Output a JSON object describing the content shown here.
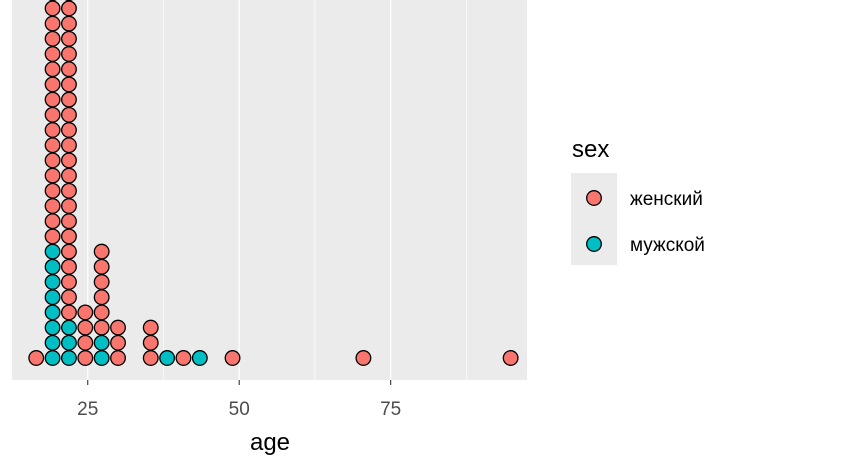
{
  "chart_data": {
    "type": "scatter",
    "subtype": "dotplot",
    "title": "",
    "xlabel": "age",
    "ylabel": "",
    "xlim": [
      12.5,
      97.5
    ],
    "x_ticks": [
      25,
      50,
      75
    ],
    "x_tick_labels": [
      "25",
      "50",
      "75"
    ],
    "grid": true,
    "legend_position": "right",
    "legend_title": "sex",
    "bin_width": 2.7,
    "series": [
      {
        "name": "женский",
        "color": "#F8766D"
      },
      {
        "name": "мужской",
        "color": "#00BFC4"
      }
    ],
    "stacks": [
      {
        "x": 16.5,
        "groups": [
          "женский"
        ]
      },
      {
        "x": 19.2,
        "groups": [
          "мужской",
          "мужской",
          "мужской",
          "мужской",
          "мужской",
          "мужской",
          "мужской",
          "мужской",
          "женский",
          "женский",
          "женский",
          "женский",
          "женский",
          "женский",
          "женский",
          "женский",
          "женский",
          "женский",
          "женский",
          "женский",
          "женский",
          "женский",
          "женский",
          "женский",
          "женский",
          "женский",
          "женский",
          "женский",
          "женский",
          "женский",
          "женский",
          "женский",
          "женский",
          "женский"
        ]
      },
      {
        "x": 21.9,
        "groups": [
          "мужской",
          "мужской",
          "мужской",
          "женский",
          "женский",
          "женский",
          "женский",
          "женский",
          "женский",
          "женский",
          "женский",
          "женский",
          "женский",
          "женский",
          "женский",
          "женский",
          "женский",
          "женский",
          "женский",
          "женский",
          "женский",
          "женский",
          "женский",
          "женский",
          "женский",
          "женский",
          "женский",
          "женский",
          "женский",
          "женский",
          "женский",
          "женский",
          "женский"
        ]
      },
      {
        "x": 24.6,
        "groups": [
          "женский",
          "женский",
          "женский",
          "женский"
        ]
      },
      {
        "x": 27.3,
        "groups": [
          "мужской",
          "мужской",
          "женский",
          "женский",
          "женский",
          "женский",
          "женский",
          "женский"
        ]
      },
      {
        "x": 30.0,
        "groups": [
          "женский",
          "женский",
          "женский"
        ]
      },
      {
        "x": 35.4,
        "groups": [
          "женский",
          "женский",
          "женский"
        ]
      },
      {
        "x": 38.1,
        "groups": [
          "мужской"
        ]
      },
      {
        "x": 40.8,
        "groups": [
          "женский"
        ]
      },
      {
        "x": 43.5,
        "groups": [
          "мужской"
        ]
      },
      {
        "x": 48.9,
        "groups": [
          "женский"
        ]
      },
      {
        "x": 70.5,
        "groups": [
          "женский"
        ]
      },
      {
        "x": 94.8,
        "groups": [
          "женский"
        ]
      }
    ]
  }
}
